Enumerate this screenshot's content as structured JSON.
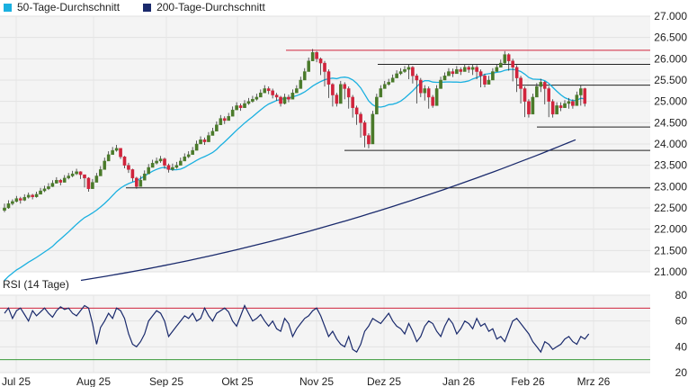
{
  "legend": [
    {
      "label": "50-Tage-Durchschnitt",
      "color": "#1ab0e0"
    },
    {
      "label": "200-Tage-Durchschnitt",
      "color": "#1a2a6c"
    }
  ],
  "colors": {
    "up": "#4a7a2a",
    "down": "#d0243c",
    "wick": "#333333",
    "sma50": "#1ab0e0",
    "sma200": "#1a2a6c",
    "rsi": "#1a2a6c",
    "rsi_upper": "#d0243c",
    "rsi_lower": "#3a9a3a",
    "resistance": "#d0243c",
    "support": "#222222"
  },
  "chart_data": [
    {
      "type": "candlestick",
      "title": "",
      "ylim": [
        21000,
        27000
      ],
      "yticks": [
        "27.000",
        "26.500",
        "26.000",
        "25.500",
        "25.000",
        "24.500",
        "24.000",
        "23.500",
        "23.000",
        "22.500",
        "22.000",
        "21.500",
        "21.000"
      ],
      "xticks": [
        "Jul 25",
        "Aug 25",
        "Sep 25",
        "Okt 25",
        "Nov 25",
        "Dez 25",
        "Jan 26",
        "Feb 26",
        "Mrz 26"
      ],
      "close": [
        22500,
        22600,
        22650,
        22720,
        22680,
        22750,
        22800,
        22760,
        22820,
        22900,
        22950,
        23000,
        23080,
        23150,
        23100,
        23200,
        23250,
        23300,
        23350,
        23280,
        23200,
        22950,
        23100,
        23250,
        23400,
        23600,
        23750,
        23850,
        23900,
        23700,
        23500,
        23400,
        23200,
        23000,
        23150,
        23300,
        23450,
        23550,
        23600,
        23650,
        23500,
        23400,
        23450,
        23500,
        23600,
        23700,
        23750,
        23850,
        24000,
        24100,
        24050,
        24200,
        24300,
        24450,
        24600,
        24550,
        24650,
        24800,
        24900,
        24850,
        24950,
        25000,
        25050,
        25100,
        25200,
        25300,
        25250,
        25150,
        25100,
        24950,
        25100,
        25050,
        25200,
        25300,
        25500,
        25700,
        25950,
        26150,
        26000,
        25900,
        25700,
        25400,
        25150,
        24950,
        25400,
        25300,
        25100,
        24850,
        24700,
        24500,
        24200,
        24000,
        24700,
        25100,
        25300,
        25400,
        25450,
        25550,
        25650,
        25700,
        25750,
        25800,
        25600,
        25500,
        25200,
        25300,
        25100,
        24900,
        25300,
        25500,
        25600,
        25700,
        25650,
        25750,
        25700,
        25800,
        25750,
        25800,
        25700,
        25600,
        25400,
        25500,
        25700,
        25800,
        25900,
        26100,
        25950,
        25800,
        25550,
        25300,
        25000,
        24700,
        25100,
        25350,
        25450,
        25300,
        25000,
        24700,
        24900,
        24850,
        24950,
        25000,
        24900,
        25150,
        25300,
        24950
      ],
      "high": [
        22600,
        22680,
        22700,
        22780,
        22760,
        22820,
        22860,
        22830,
        22880,
        22970,
        23020,
        23080,
        23150,
        23220,
        23180,
        23270,
        23320,
        23370,
        23420,
        23360,
        23280,
        23220,
        23180,
        23320,
        23480,
        23680,
        23830,
        23930,
        23980,
        23900,
        23720,
        23560,
        23420,
        23230,
        23250,
        23380,
        23530,
        23630,
        23680,
        23720,
        23680,
        23540,
        23540,
        23580,
        23680,
        23780,
        23830,
        23930,
        24080,
        24180,
        24150,
        24280,
        24380,
        24530,
        24680,
        24650,
        24730,
        24880,
        24980,
        24950,
        25030,
        25080,
        25130,
        25180,
        25280,
        25380,
        25350,
        25300,
        25200,
        25130,
        25180,
        25160,
        25280,
        25380,
        25580,
        25780,
        26030,
        26230,
        26180,
        26030,
        25950,
        25750,
        25430,
        25200,
        25480,
        25450,
        25350,
        25150,
        24900,
        24750,
        24550,
        24250,
        24780,
        25180,
        25380,
        25480,
        25530,
        25630,
        25730,
        25780,
        25830,
        25880,
        25830,
        25650,
        25550,
        25380,
        25350,
        25150,
        25380,
        25580,
        25680,
        25780,
        25770,
        25830,
        25800,
        25880,
        25840,
        25880,
        25850,
        25750,
        25650,
        25600,
        25780,
        25880,
        25980,
        26180,
        26130,
        26000,
        25850,
        25600,
        25350,
        25050,
        25180,
        25430,
        25530,
        25480,
        25350,
        25050,
        24980,
        24980,
        25030,
        25080,
        25050,
        25230,
        25380,
        25320
      ],
      "low": [
        22400,
        22480,
        22560,
        22630,
        22600,
        22660,
        22720,
        22700,
        22740,
        22820,
        22870,
        22920,
        22990,
        23070,
        23030,
        23120,
        23170,
        23220,
        23270,
        23180,
        22980,
        22880,
        22980,
        23180,
        23330,
        23520,
        23670,
        23780,
        23820,
        23650,
        23430,
        23320,
        23120,
        22950,
        23050,
        23220,
        23370,
        23480,
        23520,
        23560,
        23420,
        23330,
        23370,
        23420,
        23520,
        23620,
        23670,
        23780,
        23920,
        24020,
        23980,
        24120,
        24220,
        24370,
        24520,
        24470,
        24570,
        24720,
        24820,
        24780,
        24870,
        24920,
        24970,
        25020,
        25120,
        25220,
        25170,
        25070,
        25020,
        24880,
        24930,
        24980,
        25120,
        25230,
        25420,
        25620,
        25870,
        25950,
        25920,
        25620,
        25350,
        25080,
        24880,
        24880,
        25100,
        25050,
        24830,
        24620,
        24450,
        24150,
        23920,
        23900,
        24600,
        25020,
        25220,
        25320,
        25370,
        25470,
        25570,
        25620,
        25670,
        25520,
        25420,
        24950,
        25100,
        25020,
        24830,
        24850,
        25220,
        25420,
        25520,
        25620,
        25570,
        25670,
        25620,
        25720,
        25670,
        25620,
        25520,
        25330,
        25330,
        25420,
        25620,
        25720,
        25820,
        25870,
        25720,
        25470,
        25220,
        24950,
        24630,
        24620,
        25020,
        25270,
        25220,
        24930,
        24630,
        24620,
        24800,
        24770,
        24870,
        24830,
        24830,
        25070,
        24900,
        24880
      ],
      "sma50_range": [
        20800,
        25450,
        25200
      ],
      "sma200_range": [
        20800,
        24100
      ],
      "horizontal_levels": [
        {
          "value": 26200,
          "kind": "resistance"
        },
        {
          "value": 25870,
          "kind": "support"
        },
        {
          "value": 25380,
          "kind": "support"
        },
        {
          "value": 24400,
          "kind": "support"
        },
        {
          "value": 23850,
          "kind": "support"
        },
        {
          "value": 22970,
          "kind": "support"
        }
      ]
    },
    {
      "type": "line",
      "title": "RSI (14 Tage)",
      "ylim": [
        20,
        80
      ],
      "yticks": [
        "80",
        "60",
        "40",
        "20"
      ],
      "levels": [
        70,
        30
      ],
      "values": [
        66,
        70,
        62,
        68,
        70,
        65,
        60,
        68,
        64,
        67,
        70,
        66,
        63,
        68,
        71,
        69,
        70,
        66,
        64,
        68,
        72,
        70,
        58,
        42,
        55,
        60,
        66,
        62,
        70,
        68,
        62,
        50,
        42,
        40,
        44,
        50,
        60,
        64,
        68,
        66,
        60,
        48,
        52,
        56,
        60,
        64,
        62,
        66,
        60,
        62,
        70,
        64,
        60,
        66,
        68,
        70,
        67,
        60,
        56,
        64,
        72,
        66,
        60,
        62,
        65,
        60,
        56,
        60,
        54,
        52,
        62,
        58,
        48,
        54,
        58,
        62,
        64,
        68,
        70,
        64,
        56,
        48,
        52,
        46,
        42,
        40,
        48,
        38,
        36,
        42,
        52,
        56,
        62,
        60,
        58,
        62,
        66,
        60,
        56,
        54,
        50,
        58,
        52,
        44,
        48,
        56,
        60,
        58,
        52,
        48,
        56,
        62,
        58,
        50,
        54,
        60,
        58,
        54,
        62,
        56,
        58,
        52,
        54,
        46,
        48,
        44,
        52,
        60,
        62,
        58,
        54,
        50,
        44,
        40,
        36,
        44,
        42,
        38,
        40,
        42,
        46,
        48,
        44,
        42,
        48,
        46,
        50
      ]
    }
  ]
}
